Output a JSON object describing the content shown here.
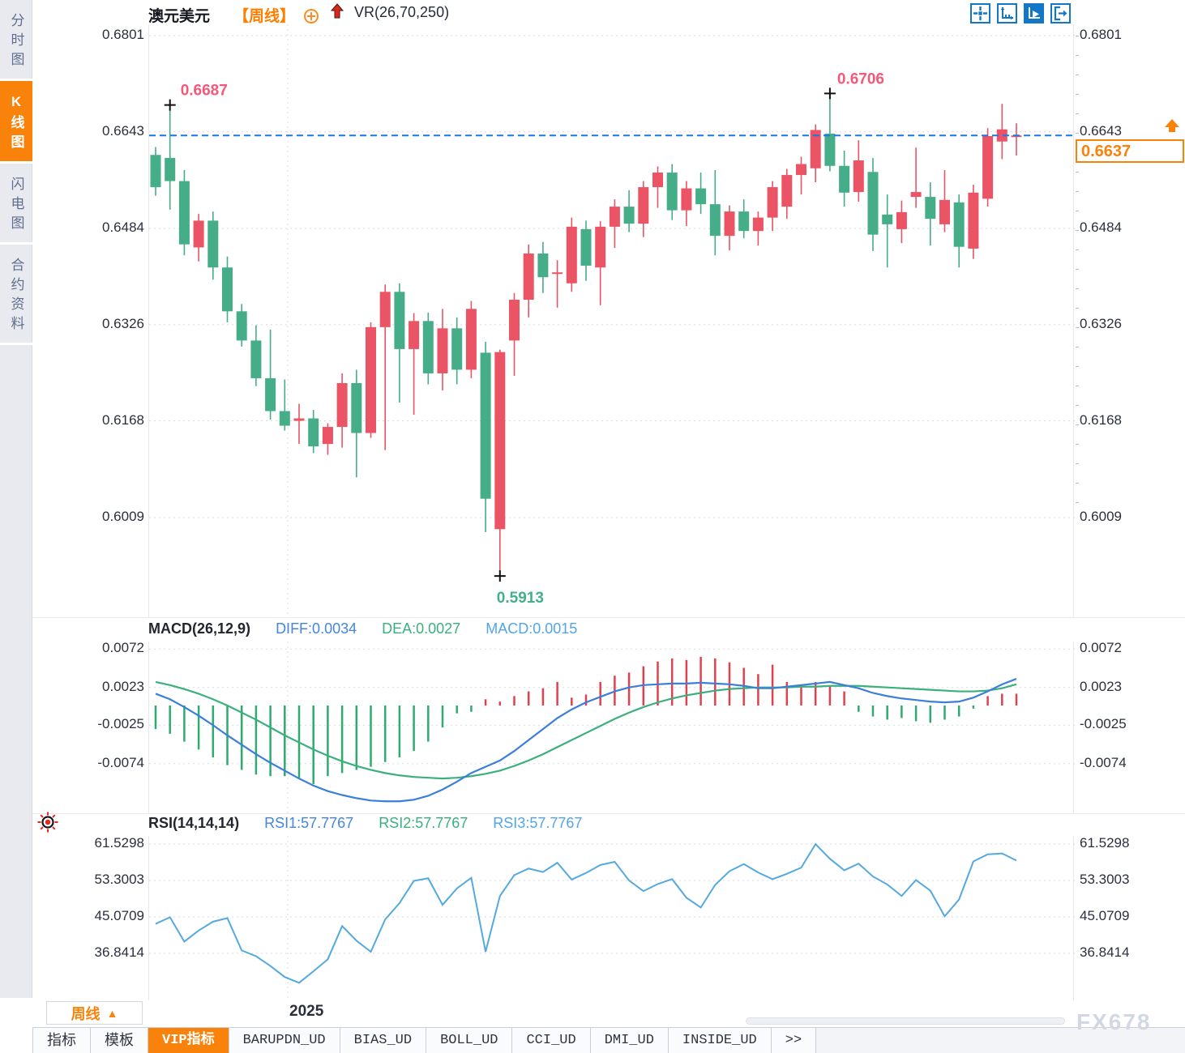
{
  "header": {
    "symbol": "澳元美元",
    "period_tag": "【周线】",
    "indicator": "VR(26,70,250)"
  },
  "sidebar": {
    "items": [
      {
        "label": "分时图",
        "active": false
      },
      {
        "label": "K线图",
        "active": true
      },
      {
        "label": "闪电图",
        "active": false
      },
      {
        "label": "合约资料",
        "active": false
      }
    ]
  },
  "toolbar": {
    "icons": [
      {
        "name": "pan-cross-icon",
        "active": false
      },
      {
        "name": "axis-scale-icon",
        "active": false
      },
      {
        "name": "axis-play-icon",
        "active": true
      },
      {
        "name": "exit-right-icon",
        "active": false
      }
    ]
  },
  "price_box": {
    "value": "0.6637"
  },
  "x_axis": {
    "year_label": "2025"
  },
  "period_selector": {
    "label": "周线",
    "arrow": "▲"
  },
  "bottom_tabs": [
    {
      "label": "指标",
      "active": false
    },
    {
      "label": "模板",
      "active": false
    },
    {
      "label": "VIP指标",
      "active": true
    },
    {
      "label": "BARUPDN_UD",
      "active": false
    },
    {
      "label": "BIAS_UD",
      "active": false
    },
    {
      "label": "BOLL_UD",
      "active": false
    },
    {
      "label": "CCI_UD",
      "active": false
    },
    {
      "label": "DMI_UD",
      "active": false
    },
    {
      "label": "INSIDE_UD",
      "active": false
    },
    {
      "label": ">>",
      "active": false
    }
  ],
  "watermark": "FX678",
  "colors": {
    "up": "#ea5464",
    "down": "#45ae88",
    "diff_line": "#3b7fd8",
    "dea_line": "#3bb07c",
    "rsi_line": "#54a9de",
    "hist_up": "#e0414f",
    "hist_down": "#2faa70",
    "accent_orange": "#f8820a",
    "price_line_blue": "#1a78e8",
    "annotation_pink": "#f4587a",
    "annotation_green": "#43b088"
  },
  "chart_data": [
    {
      "type": "candlestick",
      "title": "澳元美元 周线",
      "y_axis_labels": [
        "0.6801",
        "0.6643",
        "0.6484",
        "0.6326",
        "0.6168",
        "0.6009"
      ],
      "ylim": [
        0.5913,
        0.6801
      ],
      "current_price": 0.6637,
      "annotations": [
        {
          "text": "0.6687",
          "candle": 1,
          "at": "high"
        },
        {
          "text": "0.6706",
          "candle": 47,
          "at": "high"
        },
        {
          "text": "0.5913",
          "candle": 24,
          "at": "low"
        }
      ],
      "candles": [
        [
          0.6605,
          0.6618,
          0.6538,
          0.6552
        ],
        [
          0.66,
          0.6687,
          0.6515,
          0.6562
        ],
        [
          0.6562,
          0.658,
          0.644,
          0.6458
        ],
        [
          0.6453,
          0.6508,
          0.643,
          0.6497
        ],
        [
          0.6497,
          0.6512,
          0.64,
          0.642
        ],
        [
          0.642,
          0.6438,
          0.633,
          0.6348
        ],
        [
          0.6348,
          0.636,
          0.629,
          0.63
        ],
        [
          0.63,
          0.6325,
          0.6225,
          0.6238
        ],
        [
          0.6238,
          0.6318,
          0.617,
          0.6184
        ],
        [
          0.6184,
          0.6236,
          0.6152,
          0.616
        ],
        [
          0.6168,
          0.6196,
          0.613,
          0.6172
        ],
        [
          0.6172,
          0.6186,
          0.6115,
          0.6126
        ],
        [
          0.613,
          0.6164,
          0.6112,
          0.6158
        ],
        [
          0.6158,
          0.6246,
          0.6124,
          0.623
        ],
        [
          0.623,
          0.6252,
          0.6075,
          0.6148
        ],
        [
          0.6148,
          0.633,
          0.614,
          0.6322
        ],
        [
          0.6322,
          0.6392,
          0.612,
          0.638
        ],
        [
          0.638,
          0.6394,
          0.6198,
          0.6286
        ],
        [
          0.6286,
          0.6345,
          0.6178,
          0.6332
        ],
        [
          0.6332,
          0.6346,
          0.6228,
          0.6246
        ],
        [
          0.6246,
          0.6352,
          0.6218,
          0.632
        ],
        [
          0.632,
          0.6338,
          0.6228,
          0.6252
        ],
        [
          0.6252,
          0.6365,
          0.6238,
          0.6352
        ],
        [
          0.628,
          0.6298,
          0.5985,
          0.604
        ],
        [
          0.599,
          0.6285,
          0.5913,
          0.6281
        ],
        [
          0.63,
          0.6378,
          0.6242,
          0.6367
        ],
        [
          0.6367,
          0.6458,
          0.6338,
          0.6443
        ],
        [
          0.6443,
          0.6462,
          0.6378,
          0.6404
        ],
        [
          0.641,
          0.6432,
          0.6354,
          0.6412
        ],
        [
          0.6394,
          0.6502,
          0.638,
          0.6487
        ],
        [
          0.6483,
          0.6497,
          0.6398,
          0.6423
        ],
        [
          0.642,
          0.6496,
          0.6358,
          0.6487
        ],
        [
          0.6487,
          0.6532,
          0.6452,
          0.652
        ],
        [
          0.652,
          0.6547,
          0.6478,
          0.6492
        ],
        [
          0.6492,
          0.6562,
          0.647,
          0.6552
        ],
        [
          0.6552,
          0.6586,
          0.6518,
          0.6576
        ],
        [
          0.6576,
          0.659,
          0.6498,
          0.6514
        ],
        [
          0.6514,
          0.6562,
          0.6488,
          0.655
        ],
        [
          0.655,
          0.6576,
          0.6508,
          0.6524
        ],
        [
          0.6524,
          0.658,
          0.644,
          0.6472
        ],
        [
          0.6472,
          0.6522,
          0.6448,
          0.6512
        ],
        [
          0.6512,
          0.6532,
          0.6468,
          0.648
        ],
        [
          0.648,
          0.6512,
          0.6456,
          0.6502
        ],
        [
          0.6502,
          0.6562,
          0.648,
          0.6552
        ],
        [
          0.652,
          0.6582,
          0.65,
          0.6572
        ],
        [
          0.6572,
          0.6602,
          0.654,
          0.659
        ],
        [
          0.6583,
          0.6655,
          0.656,
          0.6646
        ],
        [
          0.664,
          0.6706,
          0.6578,
          0.6587
        ],
        [
          0.6587,
          0.6612,
          0.652,
          0.6543
        ],
        [
          0.6544,
          0.6629,
          0.6528,
          0.6596
        ],
        [
          0.6577,
          0.66,
          0.6447,
          0.6474
        ],
        [
          0.6507,
          0.654,
          0.642,
          0.6491
        ],
        [
          0.6483,
          0.653,
          0.646,
          0.6511
        ],
        [
          0.6536,
          0.6617,
          0.6518,
          0.6544
        ],
        [
          0.6536,
          0.656,
          0.6456,
          0.65
        ],
        [
          0.6491,
          0.658,
          0.6478,
          0.6531
        ],
        [
          0.6527,
          0.654,
          0.642,
          0.6454
        ],
        [
          0.6451,
          0.6556,
          0.6434,
          0.6543
        ],
        [
          0.6533,
          0.6649,
          0.652,
          0.6636
        ],
        [
          0.6627,
          0.6689,
          0.6598,
          0.6647
        ],
        [
          0.6636,
          0.6657,
          0.6604,
          0.6637
        ]
      ]
    },
    {
      "type": "macd",
      "name": "MACD(26,12,9)",
      "value_labels": {
        "diff": "DIFF:0.0034",
        "dea": "DEA:0.0027",
        "macd": "MACD:0.0015"
      },
      "y_axis_labels": [
        "0.0072",
        "0.0023",
        "-0.0025",
        "-0.0074"
      ],
      "histogram": [
        -0.003,
        -0.0036,
        -0.0046,
        -0.0056,
        -0.0066,
        -0.0076,
        -0.0082,
        -0.0088,
        -0.009,
        -0.009,
        -0.0092,
        -0.01,
        -0.009,
        -0.0086,
        -0.0082,
        -0.0078,
        -0.0072,
        -0.0066,
        -0.0058,
        -0.0046,
        -0.0028,
        -0.001,
        -0.0008,
        0.0008,
        0.0005,
        0.0012,
        0.0018,
        0.0022,
        0.003,
        0.001,
        0.0014,
        0.003,
        0.0038,
        0.0042,
        0.005,
        0.0056,
        0.006,
        0.0058,
        0.0062,
        0.006,
        0.0055,
        0.0048,
        0.004,
        0.0052,
        0.003,
        0.0026,
        0.003,
        0.0024,
        0.0018,
        -0.0008,
        -0.0014,
        -0.0018,
        -0.0016,
        -0.002,
        -0.0022,
        -0.0018,
        -0.0014,
        -0.0004,
        0.0012,
        0.0015,
        0.0015
      ],
      "diff_line": [
        0.0015,
        0.0008,
        -0.0002,
        -0.0013,
        -0.0025,
        -0.0038,
        -0.005,
        -0.0062,
        -0.0073,
        -0.0083,
        -0.0093,
        -0.0102,
        -0.0109,
        -0.0114,
        -0.0118,
        -0.0121,
        -0.0122,
        -0.0122,
        -0.012,
        -0.0115,
        -0.0107,
        -0.0097,
        -0.0086,
        -0.0078,
        -0.007,
        -0.0058,
        -0.0044,
        -0.003,
        -0.0016,
        -0.0005,
        0.0004,
        0.0011,
        0.0018,
        0.0023,
        0.0026,
        0.0027,
        0.0028,
        0.0028,
        0.0029,
        0.0028,
        0.0027,
        0.0025,
        0.0022,
        0.0022,
        0.0024,
        0.0026,
        0.0028,
        0.003,
        0.0026,
        0.0022,
        0.0016,
        0.0012,
        0.0009,
        0.0007,
        0.0005,
        0.0004,
        0.0005,
        0.001,
        0.0018,
        0.0027,
        0.0034
      ],
      "dea_line": [
        0.003,
        0.0026,
        0.0021,
        0.0015,
        0.0008,
        0.0,
        -0.0009,
        -0.0018,
        -0.0028,
        -0.0038,
        -0.0047,
        -0.0056,
        -0.0064,
        -0.0071,
        -0.0077,
        -0.0082,
        -0.0086,
        -0.0089,
        -0.0091,
        -0.0092,
        -0.0093,
        -0.0092,
        -0.009,
        -0.0087,
        -0.0083,
        -0.0077,
        -0.007,
        -0.0062,
        -0.0053,
        -0.0044,
        -0.0035,
        -0.0026,
        -0.0017,
        -0.0009,
        -0.0002,
        0.0004,
        0.0009,
        0.0013,
        0.0016,
        0.0019,
        0.0021,
        0.0022,
        0.0023,
        0.0023,
        0.0023,
        0.0024,
        0.0024,
        0.0025,
        0.0025,
        0.0025,
        0.0024,
        0.0023,
        0.0022,
        0.0021,
        0.002,
        0.0019,
        0.0018,
        0.0018,
        0.0019,
        0.0022,
        0.0027
      ]
    },
    {
      "type": "rsi",
      "name": "RSI(14,14,14)",
      "value_labels": {
        "rsi1": "RSI1:57.7767",
        "rsi2": "RSI2:57.7767",
        "rsi3": "RSI3:57.7767"
      },
      "y_axis_labels": [
        "61.5298",
        "53.3003",
        "45.0709",
        "36.8414"
      ],
      "values": [
        43.5,
        45.0,
        39.5,
        42.0,
        44.0,
        44.8,
        37.5,
        36.2,
        34.0,
        31.5,
        30.2,
        32.8,
        35.5,
        43.0,
        39.7,
        37.2,
        44.5,
        48.2,
        53.2,
        53.8,
        47.8,
        51.5,
        53.9,
        37.2,
        49.8,
        54.5,
        56.0,
        55.2,
        57.3,
        53.5,
        55.0,
        56.8,
        57.5,
        53.3,
        50.9,
        52.5,
        53.6,
        49.4,
        47.2,
        52.3,
        55.4,
        57.0,
        55.1,
        53.6,
        54.8,
        56.2,
        61.5,
        58.2,
        55.6,
        57.1,
        54.2,
        52.4,
        49.8,
        53.4,
        51.0,
        45.2,
        49.0,
        57.6,
        59.2,
        59.4,
        57.8
      ]
    }
  ]
}
